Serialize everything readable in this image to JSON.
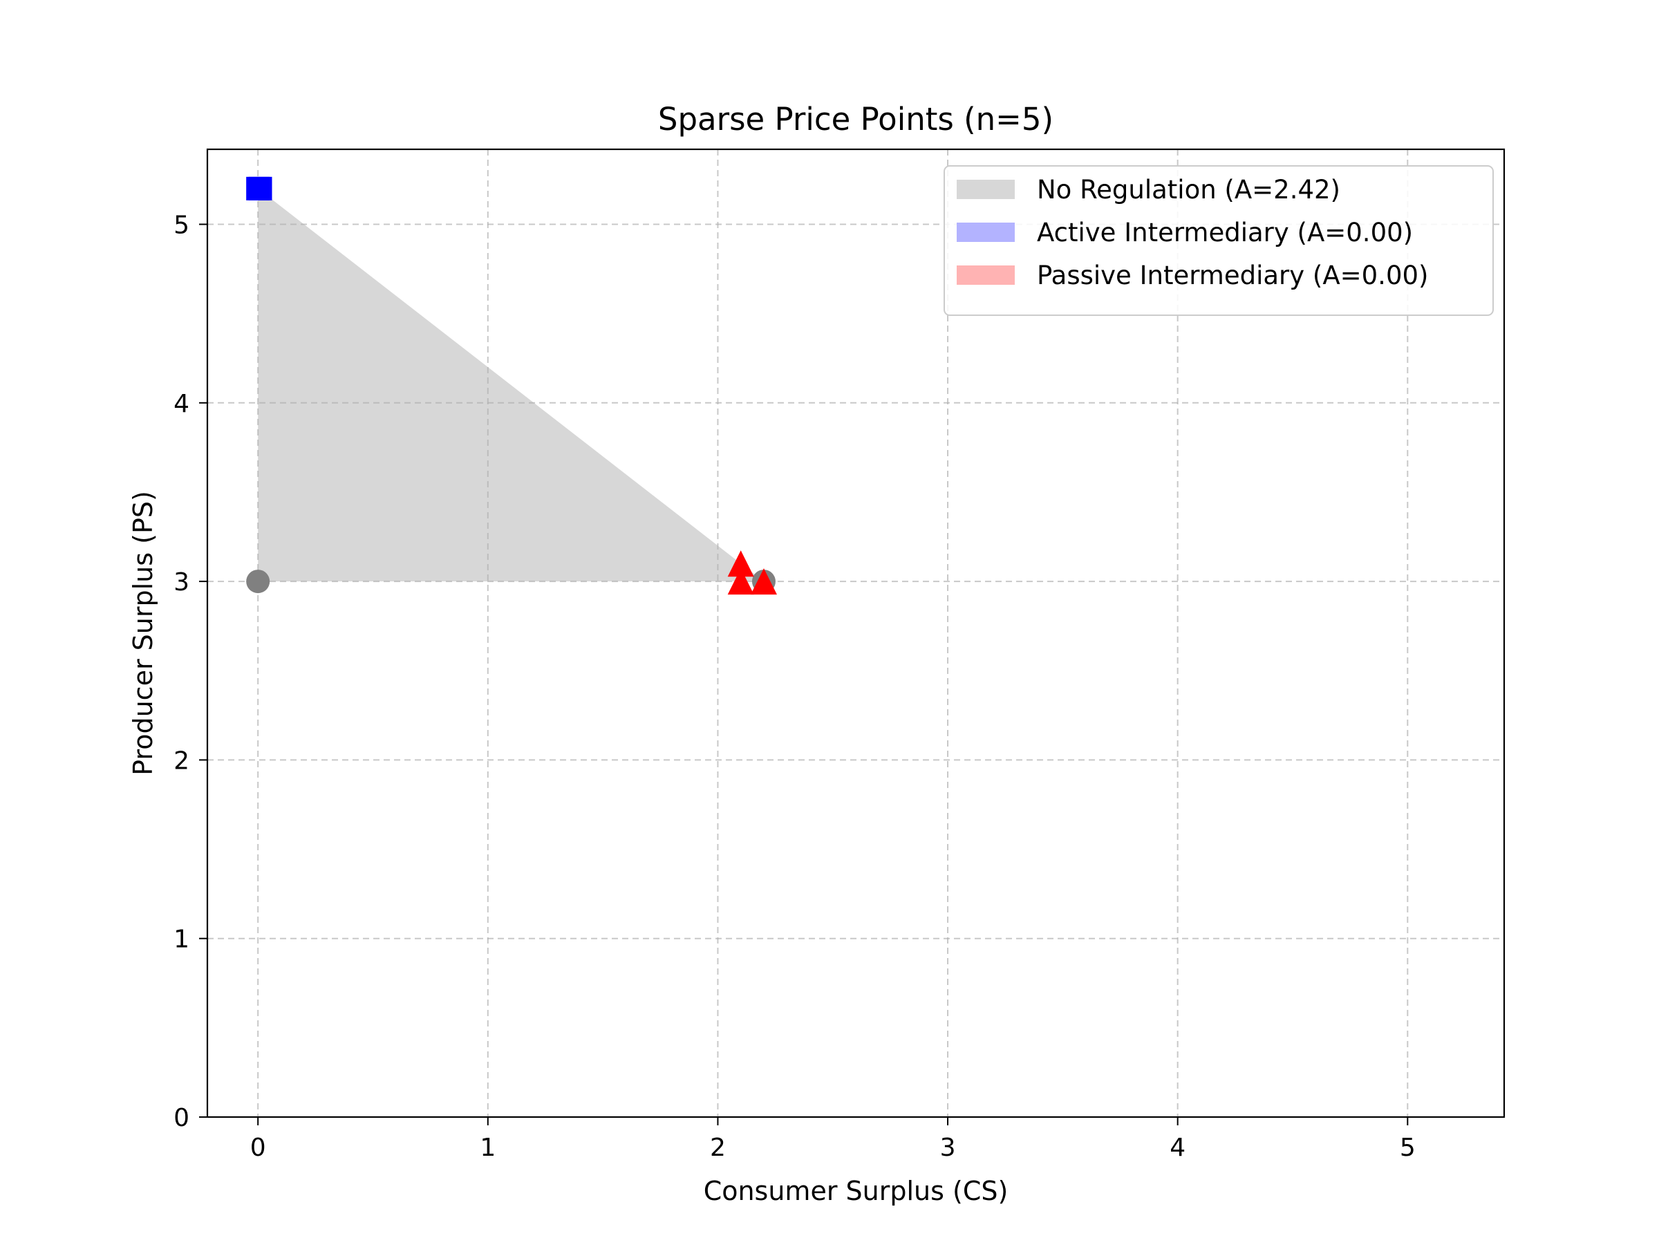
{
  "chart_data": {
    "type": "scatter",
    "title": "Sparse Price Points (n=5)",
    "xlabel": "Consumer Surplus (CS)",
    "ylabel": "Producer Surplus (PS)",
    "xlim": [
      -0.22,
      5.42
    ],
    "ylim": [
      0,
      5.42
    ],
    "xticks": [
      0,
      1,
      2,
      3,
      4,
      5
    ],
    "yticks": [
      0,
      1,
      2,
      3,
      4,
      5
    ],
    "grid": true,
    "grid_style": "dashed",
    "legend_position": "top-right",
    "legend": [
      {
        "label": "No Regulation (A=2.42)",
        "color": "#d7d7d7"
      },
      {
        "label": "Active Intermediary (A=0.00)",
        "color": "#b3b3ff"
      },
      {
        "label": "Passive Intermediary (A=0.00)",
        "color": "#ffb3b3"
      }
    ],
    "regions": [
      {
        "name": "No Regulation",
        "color": "#d7d7d7",
        "polygon": [
          [
            0,
            3.0
          ],
          [
            0,
            5.2
          ],
          [
            2.2,
            3.0
          ]
        ]
      }
    ],
    "series": [
      {
        "marker": "circle",
        "color": "#808080",
        "points": [
          [
            0,
            3.0
          ],
          [
            2.2,
            3.0
          ]
        ]
      },
      {
        "marker": "square",
        "color": "#0000ff",
        "points": [
          [
            0,
            5.2
          ],
          [
            0.01,
            5.2
          ]
        ]
      },
      {
        "marker": "triangle",
        "color": "#ff0000",
        "points": [
          [
            2.1,
            3.1
          ],
          [
            2.1,
            3.0
          ],
          [
            2.2,
            3.0
          ]
        ]
      }
    ]
  }
}
